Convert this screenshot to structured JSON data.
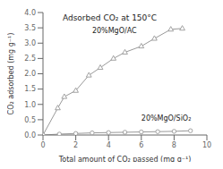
{
  "chart_data": {
    "type": "line",
    "title": "Adsorbed CO₂ at 150°C",
    "x_label": "Total amount of CO₂ passed (mg g⁻¹)",
    "y_label": "CO₂ adsorbed (mg g⁻¹)",
    "xlim": [
      0,
      10
    ],
    "ylim": [
      0,
      4.0
    ],
    "xticks": [
      0,
      2,
      4,
      6,
      8,
      10
    ],
    "yticks": [
      {
        "value": 0.0,
        "label": "0.0"
      },
      0.5,
      {
        "value": 1.0,
        "label": "1.0"
      },
      1.5,
      {
        "value": 2.0,
        "label": "2.0"
      },
      2.5,
      {
        "value": 3.0,
        "label": "3.0"
      },
      3.5,
      {
        "value": 4.0,
        "label": "4.0"
      }
    ],
    "series": [
      {
        "name": "20%MgO/AC",
        "color": "#999999",
        "marker": "triangle",
        "x": [
          0,
          0.9,
          1.3,
          2.0,
          2.8,
          3.5,
          4.3,
          5.0,
          6.0,
          6.8,
          7.8,
          8.5
        ],
        "values": [
          0,
          0.88,
          1.25,
          1.45,
          1.95,
          2.2,
          2.5,
          2.7,
          2.9,
          3.15,
          3.45,
          3.48
        ]
      },
      {
        "name": "20%MgO/SiO₂",
        "color": "#999999",
        "marker": "circle",
        "x": [
          0,
          1.0,
          2.0,
          3.0,
          4.0,
          5.0,
          6.0,
          7.0,
          8.0,
          9.0
        ],
        "values": [
          0,
          0.03,
          0.05,
          0.07,
          0.08,
          0.09,
          0.1,
          0.11,
          0.12,
          0.14
        ]
      }
    ]
  }
}
